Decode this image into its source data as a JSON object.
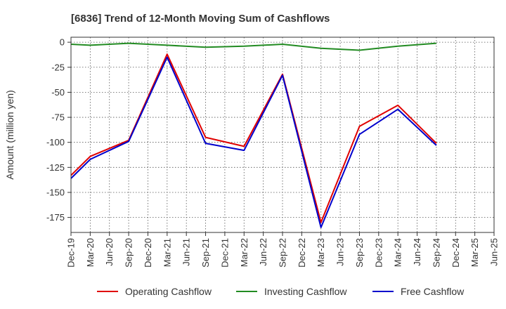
{
  "chart_data": {
    "type": "line",
    "title": "[6836]  Trend of 12-Month Moving Sum of Cashflows",
    "xlabel": "",
    "ylabel": "Amount (million yen)",
    "ylim": [
      -190,
      5
    ],
    "yticks": [
      0,
      -25,
      -50,
      -75,
      -100,
      -125,
      -150,
      -175
    ],
    "categories": [
      "Dec-19",
      "Mar-20",
      "Jun-20",
      "Sep-20",
      "Dec-20",
      "Mar-21",
      "Jun-21",
      "Sep-21",
      "Dec-21",
      "Mar-22",
      "Jun-22",
      "Sep-22",
      "Dec-22",
      "Mar-23",
      "Jun-23",
      "Sep-23",
      "Dec-23",
      "Mar-24",
      "Jun-24",
      "Sep-24",
      "Dec-24",
      "Mar-25"
    ],
    "x_tick_labels": [
      "Dec-19",
      "Mar-20",
      "Jun-20",
      "Sep-20",
      "Dec-20",
      "Mar-21",
      "Jun-21",
      "Sep-21",
      "Dec-21",
      "Mar-22",
      "Jun-22",
      "Sep-22",
      "Dec-22",
      "Mar-23",
      "Jun-23",
      "Sep-23",
      "Dec-23",
      "Mar-24",
      "Jun-24",
      "Sep-24",
      "Dec-24",
      "Mar-25",
      "Jun-25"
    ],
    "grid": true,
    "legend_position": "bottom",
    "series": [
      {
        "name": "Operating Cashflow",
        "color": "#e00000",
        "values": [
          -133,
          -114,
          null,
          -98,
          null,
          -12,
          null,
          -95,
          null,
          -104,
          null,
          -32,
          null,
          -180,
          null,
          -84,
          null,
          -63,
          null,
          -101,
          null,
          null
        ]
      },
      {
        "name": "Investing Cashflow",
        "color": "#228b22",
        "values": [
          -2,
          -3,
          null,
          -1,
          null,
          -3,
          null,
          -5,
          null,
          -4,
          null,
          -2,
          null,
          -6,
          null,
          -8,
          null,
          -4,
          null,
          -1,
          null,
          null
        ]
      },
      {
        "name": "Free Cashflow",
        "color": "#0000cc",
        "values": [
          -136,
          -117,
          null,
          -99,
          null,
          -15,
          null,
          -101,
          null,
          -108,
          null,
          -33,
          null,
          -185,
          null,
          -92,
          null,
          -67,
          null,
          -103,
          null,
          null
        ]
      }
    ]
  }
}
